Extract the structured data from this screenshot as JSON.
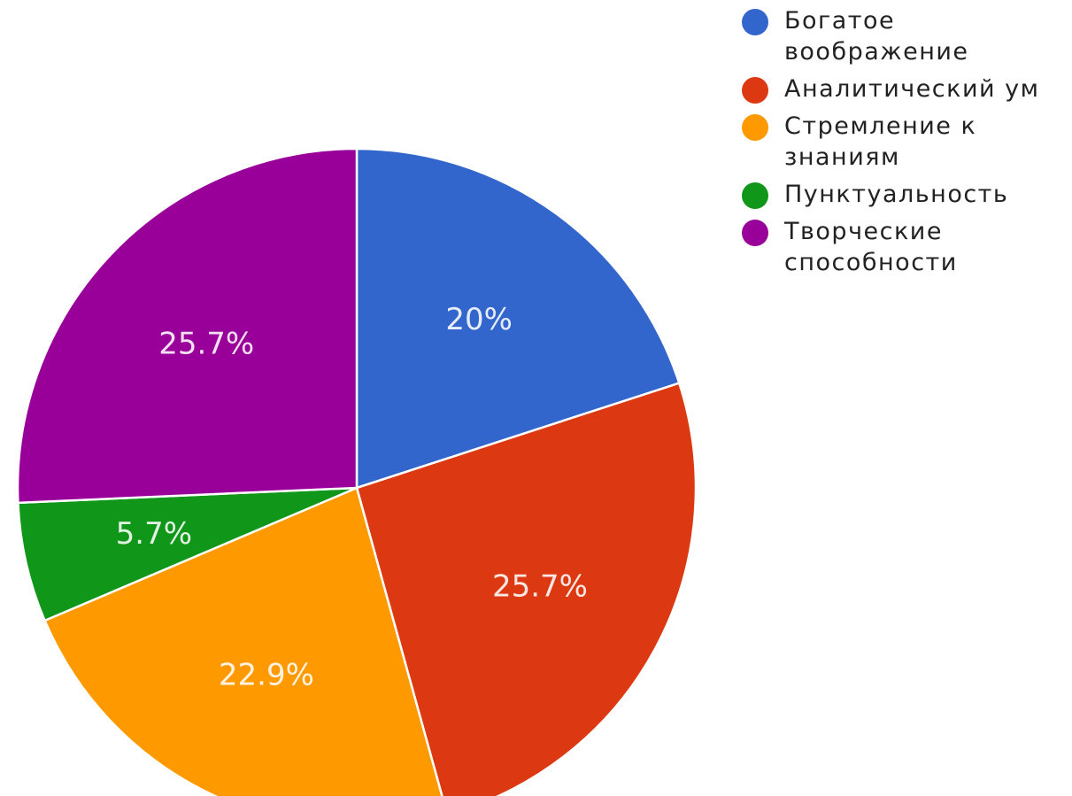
{
  "chart_data": {
    "type": "pie",
    "title": "",
    "legend_position": "top-right",
    "start": "top, clockwise",
    "slices": [
      {
        "label": "Богатое воображение",
        "value": 20.0,
        "display": "20%",
        "color": "#3366cc"
      },
      {
        "label": "Аналитический ум",
        "value": 25.7,
        "display": "25.7%",
        "color": "#dc3912"
      },
      {
        "label": "Стремление к знаниям",
        "value": 22.9,
        "display": "22.9%",
        "color": "#ff9900"
      },
      {
        "label": "Пунктуальность",
        "value": 5.7,
        "display": "5.7%",
        "color": "#109618"
      },
      {
        "label": "Творческие способности",
        "value": 25.7,
        "display": "25.7%",
        "color": "#990099"
      }
    ]
  }
}
